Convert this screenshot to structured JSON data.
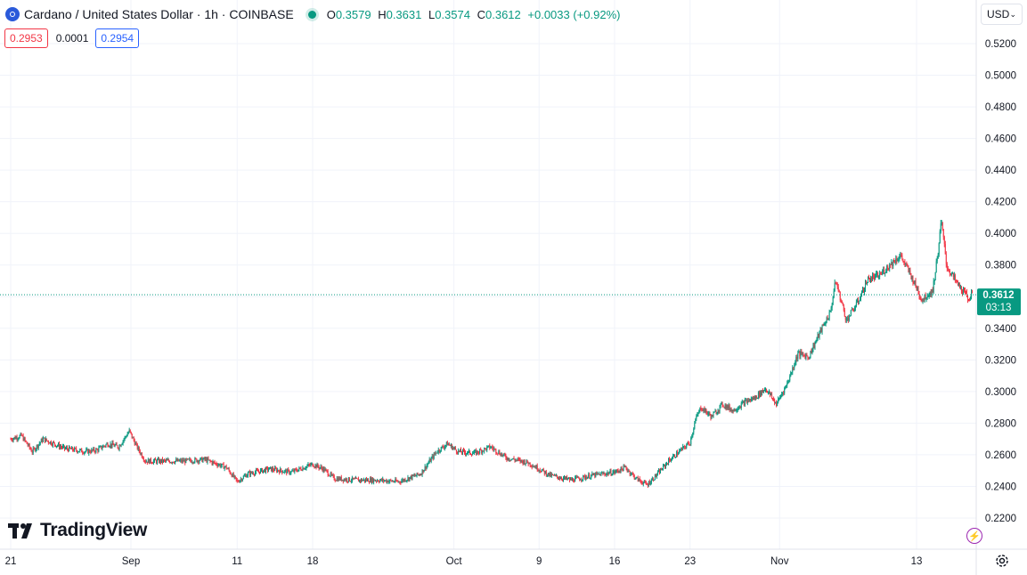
{
  "legend": {
    "symbol_title": "Cardano / United States Dollar · 1h · COINBASE",
    "open_label": "O",
    "open_value": "0.3579",
    "high_label": "H",
    "high_value": "0.3631",
    "low_label": "L",
    "low_value": "0.3574",
    "close_label": "C",
    "close_value": "0.3612",
    "change": "+0.0033 (+0.92%)"
  },
  "bid_ask": {
    "bid": "0.2953",
    "spread": "0.0001",
    "ask": "0.2954"
  },
  "currency": "USD",
  "brand": "TradingView",
  "last_price": {
    "value": "0.3612",
    "countdown": "03:13"
  },
  "icons": [
    "coin-icon",
    "status-dot-icon",
    "chevron-down-icon",
    "tradingview-logo-icon",
    "compare-icon",
    "settings-gear-icon"
  ],
  "colors": {
    "up": "#089981",
    "down": "#f23645",
    "grid": "#f0f3fa",
    "text": "#131722",
    "bid": "#f23645",
    "ask": "#2962ff",
    "price_line": "#089981"
  },
  "chart_data": {
    "type": "candlestick",
    "ylim": [
      0.206,
      0.528
    ],
    "y_ticks": [
      "0.5200",
      "0.5000",
      "0.4800",
      "0.4600",
      "0.4400",
      "0.4200",
      "0.4000",
      "0.3800",
      "0.3600",
      "0.3400",
      "0.3200",
      "0.3000",
      "0.2800",
      "0.2600",
      "0.2400",
      "0.2200"
    ],
    "x_ticks": [
      "21",
      "Sep",
      "11",
      "18",
      "Oct",
      "9",
      "16",
      "23",
      "Nov",
      "13"
    ],
    "x_tick_days": [
      0,
      11.15,
      21,
      28,
      41.1,
      49,
      56,
      63,
      71.3,
      84
    ],
    "last_price": 0.3612,
    "grid": true,
    "approx_close_path": [
      {
        "d": 0,
        "v": 0.27
      },
      {
        "d": 1,
        "v": 0.272
      },
      {
        "d": 2,
        "v": 0.262
      },
      {
        "d": 3,
        "v": 0.27
      },
      {
        "d": 4,
        "v": 0.267
      },
      {
        "d": 5,
        "v": 0.264
      },
      {
        "d": 6,
        "v": 0.263
      },
      {
        "d": 7,
        "v": 0.262
      },
      {
        "d": 8,
        "v": 0.263
      },
      {
        "d": 9,
        "v": 0.267
      },
      {
        "d": 10,
        "v": 0.265
      },
      {
        "d": 11,
        "v": 0.275
      },
      {
        "d": 11.7,
        "v": 0.265
      },
      {
        "d": 12.5,
        "v": 0.256
      },
      {
        "d": 14,
        "v": 0.256
      },
      {
        "d": 16,
        "v": 0.256
      },
      {
        "d": 18,
        "v": 0.257
      },
      {
        "d": 20,
        "v": 0.252
      },
      {
        "d": 21,
        "v": 0.243
      },
      {
        "d": 22,
        "v": 0.248
      },
      {
        "d": 24,
        "v": 0.251
      },
      {
        "d": 26,
        "v": 0.249
      },
      {
        "d": 28,
        "v": 0.254
      },
      {
        "d": 29,
        "v": 0.251
      },
      {
        "d": 30,
        "v": 0.245
      },
      {
        "d": 32,
        "v": 0.244
      },
      {
        "d": 34,
        "v": 0.244
      },
      {
        "d": 36,
        "v": 0.243
      },
      {
        "d": 38,
        "v": 0.248
      },
      {
        "d": 39.5,
        "v": 0.262
      },
      {
        "d": 40.5,
        "v": 0.267
      },
      {
        "d": 41.5,
        "v": 0.262
      },
      {
        "d": 43,
        "v": 0.261
      },
      {
        "d": 44.5,
        "v": 0.265
      },
      {
        "d": 46,
        "v": 0.258
      },
      {
        "d": 48,
        "v": 0.255
      },
      {
        "d": 50,
        "v": 0.247
      },
      {
        "d": 52,
        "v": 0.244
      },
      {
        "d": 54,
        "v": 0.247
      },
      {
        "d": 56,
        "v": 0.249
      },
      {
        "d": 57,
        "v": 0.252
      },
      {
        "d": 58,
        "v": 0.245
      },
      {
        "d": 59,
        "v": 0.241
      },
      {
        "d": 60,
        "v": 0.248
      },
      {
        "d": 61,
        "v": 0.256
      },
      {
        "d": 62,
        "v": 0.262
      },
      {
        "d": 63,
        "v": 0.268
      },
      {
        "d": 63.5,
        "v": 0.282
      },
      {
        "d": 64,
        "v": 0.29
      },
      {
        "d": 65,
        "v": 0.284
      },
      {
        "d": 66,
        "v": 0.292
      },
      {
        "d": 67,
        "v": 0.288
      },
      {
        "d": 68,
        "v": 0.293
      },
      {
        "d": 69,
        "v": 0.296
      },
      {
        "d": 70,
        "v": 0.302
      },
      {
        "d": 71,
        "v": 0.292
      },
      {
        "d": 72,
        "v": 0.305
      },
      {
        "d": 73,
        "v": 0.324
      },
      {
        "d": 74,
        "v": 0.322
      },
      {
        "d": 75,
        "v": 0.337
      },
      {
        "d": 76,
        "v": 0.35
      },
      {
        "d": 76.5,
        "v": 0.37
      },
      {
        "d": 77.5,
        "v": 0.345
      },
      {
        "d": 78.5,
        "v": 0.356
      },
      {
        "d": 79.5,
        "v": 0.371
      },
      {
        "d": 80.5,
        "v": 0.373
      },
      {
        "d": 81.5,
        "v": 0.38
      },
      {
        "d": 82.5,
        "v": 0.386
      },
      {
        "d": 83.5,
        "v": 0.373
      },
      {
        "d": 84.5,
        "v": 0.358
      },
      {
        "d": 85.5,
        "v": 0.364
      },
      {
        "d": 86,
        "v": 0.389
      },
      {
        "d": 86.3,
        "v": 0.408
      },
      {
        "d": 86.8,
        "v": 0.379
      },
      {
        "d": 87.8,
        "v": 0.368
      },
      {
        "d": 88.8,
        "v": 0.359
      },
      {
        "d": 89.2,
        "v": 0.3612
      }
    ]
  }
}
